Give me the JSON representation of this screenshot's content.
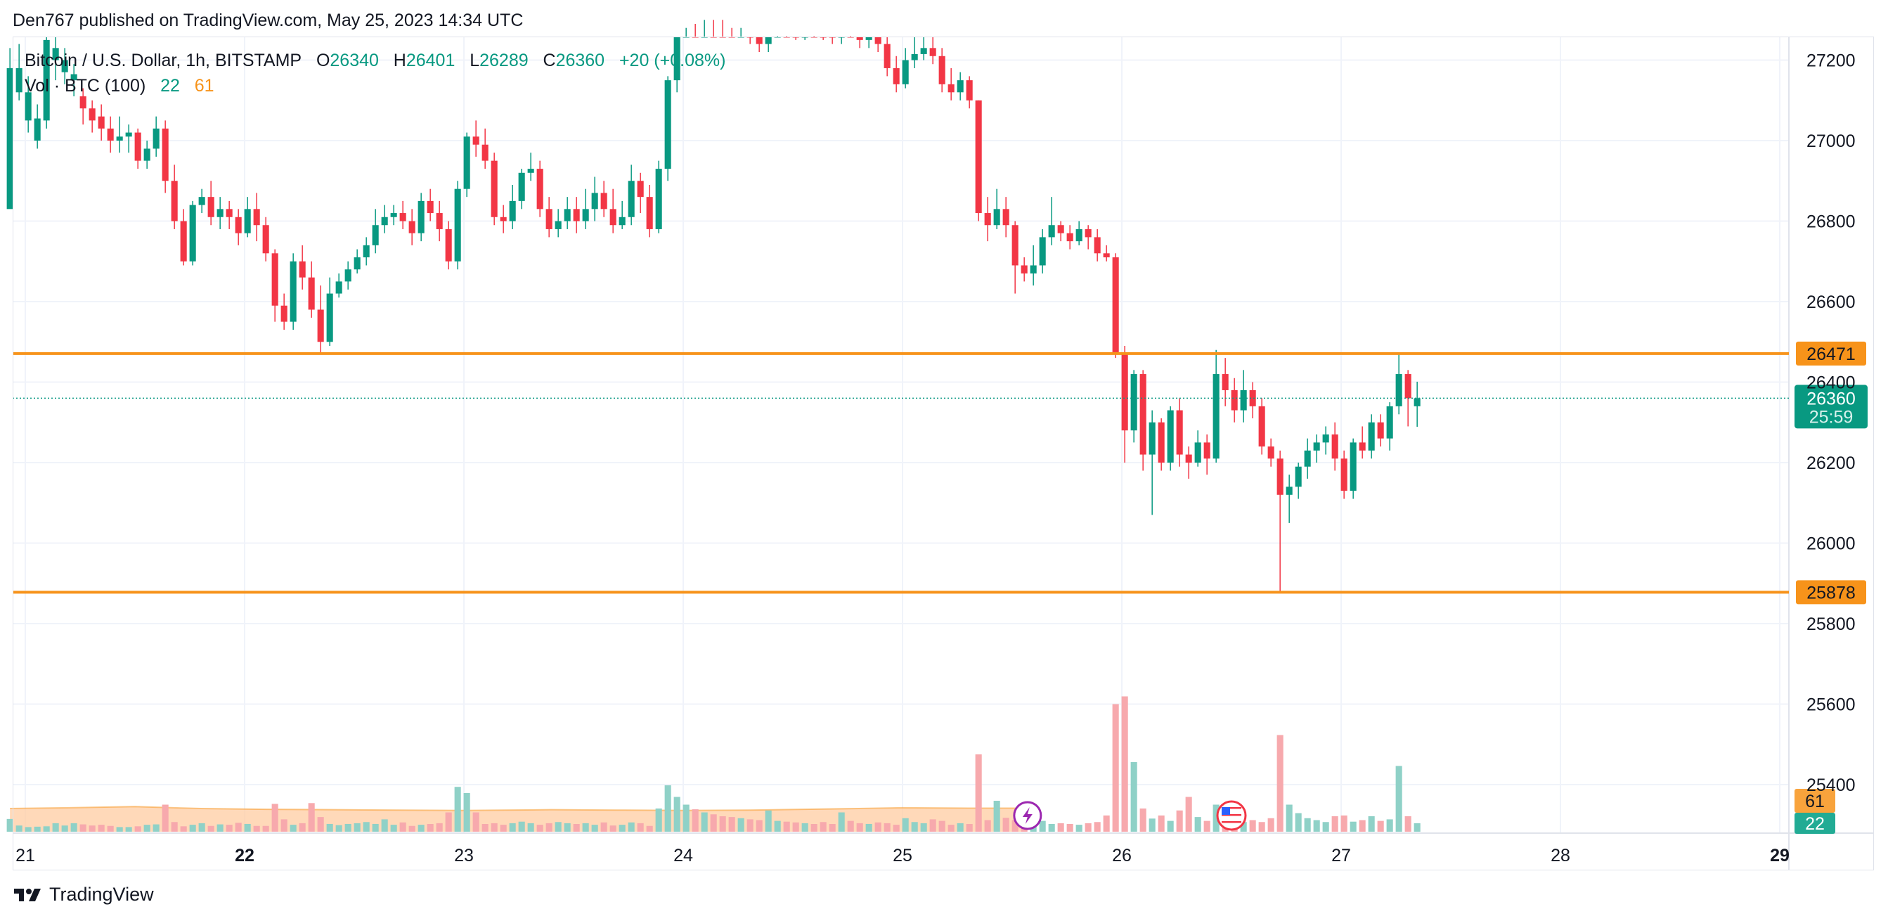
{
  "publisher": "Den767 published on TradingView.com, May 25, 2023 14:34 UTC",
  "brand": "TradingView",
  "legend": {
    "symbol": "Bitcoin / U.S. Dollar, 1h, BITSTAMP",
    "o_label": "O",
    "o_value": "26340",
    "h_label": "H",
    "h_value": "26401",
    "l_label": "L",
    "l_value": "26289",
    "c_label": "C",
    "c_value": "26360",
    "change": "+20 (+0.08%)",
    "vol_label": "Vol · BTC (100)",
    "vol_value_up": "22",
    "vol_value_ma": "61"
  },
  "colors": {
    "up": "#089981",
    "down": "#f23645",
    "level": "#f7931a",
    "grid": "#f0f3fa",
    "vol_up": "#8fd1c7",
    "vol_down": "#f7a9ad",
    "vol_ma_fill": "#ffcca1"
  },
  "icons": [
    "tradingview-logo-icon",
    "lightning-event-icon",
    "us-flag-event-icon"
  ],
  "chart_data": {
    "type": "candlestick",
    "title": "Bitcoin / U.S. Dollar, 1h, BITSTAMP",
    "x_range_days": [
      20.9,
      29.0
    ],
    "ylim": [
      25300,
      27250
    ],
    "y_ticks": [
      25400,
      25600,
      25800,
      26000,
      26200,
      26400,
      26600,
      26800,
      27000,
      27200
    ],
    "x_ticks": [
      "21",
      "22",
      "23",
      "24",
      "25",
      "26",
      "27",
      "28",
      "29"
    ],
    "levels": [
      26471,
      25878
    ],
    "last_price": {
      "value": "26360",
      "countdown": "25:59"
    },
    "volume_badges": {
      "ma": "61",
      "vol": "22"
    },
    "candles_start_day": 20.93,
    "candles_per_day": 24,
    "candles": [
      [
        26830,
        27180,
        27230,
        27110,
        33
      ],
      [
        27120,
        27180,
        27240,
        27100,
        16
      ],
      [
        27050,
        27120,
        27160,
        27020,
        12
      ],
      [
        27000,
        27055,
        27090,
        26980,
        13
      ],
      [
        27050,
        27250,
        27290,
        27030,
        14
      ],
      [
        27200,
        27230,
        27270,
        27150,
        22
      ],
      [
        27170,
        27200,
        27230,
        27140,
        16
      ],
      [
        27150,
        27165,
        27190,
        27110,
        22
      ],
      [
        27110,
        27080,
        27130,
        27040,
        19
      ],
      [
        27080,
        27050,
        27100,
        27020,
        16
      ],
      [
        27060,
        27030,
        27090,
        27000,
        18
      ],
      [
        27030,
        27000,
        27060,
        26970,
        15
      ],
      [
        27000,
        27010,
        27060,
        26970,
        12
      ],
      [
        27010,
        27020,
        27040,
        26970,
        12
      ],
      [
        27020,
        26950,
        27030,
        26930,
        14
      ],
      [
        26950,
        26980,
        27000,
        26930,
        18
      ],
      [
        26980,
        27030,
        27060,
        26960,
        19
      ],
      [
        27030,
        26900,
        27050,
        26870,
        70
      ],
      [
        26900,
        26800,
        26940,
        26780,
        25
      ],
      [
        26800,
        26700,
        26830,
        26690,
        14
      ],
      [
        26700,
        26840,
        26850,
        26690,
        18
      ],
      [
        26840,
        26860,
        26880,
        26820,
        22
      ],
      [
        26860,
        26810,
        26900,
        26790,
        15
      ],
      [
        26810,
        26830,
        26860,
        26780,
        19
      ],
      [
        26830,
        26810,
        26850,
        26780,
        18
      ],
      [
        26810,
        26770,
        26830,
        26740,
        23
      ],
      [
        26770,
        26830,
        26860,
        26760,
        20
      ],
      [
        26830,
        26790,
        26870,
        26750,
        15
      ],
      [
        26790,
        26720,
        26810,
        26700,
        15
      ],
      [
        26720,
        26590,
        26730,
        26550,
        72
      ],
      [
        26590,
        26550,
        26620,
        26530,
        32
      ],
      [
        26550,
        26700,
        26720,
        26530,
        18
      ],
      [
        26700,
        26660,
        26740,
        26630,
        22
      ],
      [
        26660,
        26580,
        26700,
        26560,
        74
      ],
      [
        26580,
        26500,
        26640,
        26470,
        38
      ],
      [
        26500,
        26620,
        26660,
        26490,
        20
      ],
      [
        26620,
        26650,
        26670,
        26610,
        17
      ],
      [
        26650,
        26680,
        26700,
        26630,
        20
      ],
      [
        26680,
        26710,
        26730,
        26670,
        22
      ],
      [
        26710,
        26740,
        26760,
        26690,
        25
      ],
      [
        26740,
        26790,
        26830,
        26720,
        20
      ],
      [
        26790,
        26810,
        26840,
        26770,
        32
      ],
      [
        26810,
        26820,
        26840,
        26790,
        18
      ],
      [
        26820,
        26800,
        26850,
        26780,
        24
      ],
      [
        26800,
        26770,
        26830,
        26740,
        15
      ],
      [
        26770,
        26850,
        26870,
        26750,
        18
      ],
      [
        26850,
        26820,
        26880,
        26800,
        20
      ],
      [
        26820,
        26780,
        26850,
        26750,
        22
      ],
      [
        26780,
        26700,
        26800,
        26680,
        50
      ],
      [
        26700,
        26880,
        26900,
        26680,
        116
      ],
      [
        26880,
        27010,
        27020,
        26860,
        100
      ],
      [
        27010,
        26990,
        27050,
        26960,
        50
      ],
      [
        26990,
        26950,
        27030,
        26930,
        20
      ],
      [
        26950,
        26810,
        26970,
        26790,
        22
      ],
      [
        26810,
        26800,
        26840,
        26770,
        18
      ],
      [
        26800,
        26850,
        26890,
        26780,
        22
      ],
      [
        26850,
        26920,
        26930,
        26830,
        26
      ],
      [
        26920,
        26930,
        26970,
        26900,
        22
      ],
      [
        26930,
        26830,
        26950,
        26810,
        18
      ],
      [
        26830,
        26780,
        26860,
        26760,
        22
      ],
      [
        26780,
        26800,
        26830,
        26760,
        25
      ],
      [
        26800,
        26830,
        26860,
        26780,
        22
      ],
      [
        26830,
        26800,
        26860,
        26770,
        20
      ],
      [
        26800,
        26830,
        26880,
        26780,
        22
      ],
      [
        26830,
        26870,
        26910,
        26800,
        18
      ],
      [
        26870,
        26830,
        26900,
        26810,
        24
      ],
      [
        26830,
        26790,
        26880,
        26770,
        16
      ],
      [
        26790,
        26810,
        26850,
        26780,
        18
      ],
      [
        26810,
        26900,
        26940,
        26790,
        24
      ],
      [
        26900,
        26860,
        26920,
        26820,
        22
      ],
      [
        26860,
        26780,
        26890,
        26760,
        15
      ],
      [
        26780,
        26930,
        26950,
        26770,
        60
      ],
      [
        26930,
        27150,
        27160,
        26900,
        120
      ],
      [
        27150,
        27300,
        27350,
        27120,
        90
      ],
      [
        27300,
        27350,
        27400,
        27280,
        70
      ],
      [
        27350,
        27320,
        27400,
        27290,
        58
      ],
      [
        27320,
        27340,
        27380,
        27300,
        50
      ],
      [
        27340,
        27330,
        27380,
        27300,
        45
      ],
      [
        27330,
        27320,
        27370,
        27300,
        40
      ],
      [
        27320,
        27300,
        27360,
        27280,
        38
      ],
      [
        27300,
        27310,
        27340,
        27280,
        35
      ],
      [
        27310,
        27270,
        27340,
        27240,
        32
      ],
      [
        27270,
        27240,
        27290,
        27220,
        30
      ],
      [
        27240,
        27280,
        27300,
        27220,
        55
      ],
      [
        27280,
        27300,
        27330,
        27260,
        28
      ],
      [
        27300,
        27290,
        27320,
        27260,
        26
      ],
      [
        27290,
        27270,
        27320,
        27250,
        24
      ],
      [
        27270,
        27290,
        27310,
        27250,
        22
      ],
      [
        27290,
        27280,
        27310,
        27260,
        20
      ],
      [
        27280,
        27270,
        27300,
        27250,
        25
      ],
      [
        27270,
        27260,
        27290,
        27240,
        20
      ],
      [
        27260,
        27300,
        27310,
        27240,
        50
      ],
      [
        27300,
        27280,
        27330,
        27260,
        28
      ],
      [
        27280,
        27250,
        27300,
        27230,
        22
      ],
      [
        27250,
        27270,
        27290,
        27230,
        20
      ],
      [
        27270,
        27240,
        27290,
        27220,
        24
      ],
      [
        27240,
        27180,
        27260,
        27160,
        22
      ],
      [
        27180,
        27140,
        27210,
        27120,
        18
      ],
      [
        27140,
        27200,
        27230,
        27130,
        35
      ],
      [
        27200,
        27215,
        27260,
        27180,
        25
      ],
      [
        27215,
        27230,
        27280,
        27200,
        22
      ],
      [
        27230,
        27210,
        27260,
        27190,
        32
      ],
      [
        27210,
        27140,
        27230,
        27120,
        28
      ],
      [
        27140,
        27120,
        27180,
        27100,
        18
      ],
      [
        27120,
        27150,
        27170,
        27100,
        22
      ],
      [
        27150,
        27100,
        27160,
        27080,
        20
      ],
      [
        27100,
        26820,
        27100,
        26800,
        200
      ],
      [
        26820,
        26790,
        26860,
        26750,
        30
      ],
      [
        26790,
        26830,
        26880,
        26780,
        80
      ],
      [
        26830,
        26790,
        26860,
        26760,
        36
      ],
      [
        26790,
        26690,
        26800,
        26620,
        30
      ],
      [
        26690,
        26670,
        26710,
        26650,
        50
      ],
      [
        26670,
        26690,
        26740,
        26640,
        42
      ],
      [
        26690,
        26760,
        26780,
        26670,
        28
      ],
      [
        26760,
        26790,
        26860,
        26740,
        20
      ],
      [
        26790,
        26770,
        26800,
        26750,
        22
      ],
      [
        26770,
        26750,
        26790,
        26730,
        20
      ],
      [
        26750,
        26780,
        26800,
        26740,
        18
      ],
      [
        26780,
        26760,
        26790,
        26730,
        22
      ],
      [
        26760,
        26720,
        26780,
        26700,
        25
      ],
      [
        26720,
        26710,
        26740,
        26700,
        42
      ],
      [
        26710,
        26470,
        26720,
        26460,
        330
      ],
      [
        26470,
        26280,
        26490,
        26200,
        350
      ],
      [
        26280,
        26420,
        26430,
        26250,
        180
      ],
      [
        26420,
        26220,
        26430,
        26180,
        60
      ],
      [
        26220,
        26300,
        26330,
        26070,
        34
      ],
      [
        26300,
        26200,
        26310,
        26180,
        42
      ],
      [
        26200,
        26330,
        26340,
        26180,
        28
      ],
      [
        26330,
        26220,
        26360,
        26190,
        55
      ],
      [
        26220,
        26200,
        26240,
        26160,
        90
      ],
      [
        26200,
        26250,
        26280,
        26190,
        38
      ],
      [
        26250,
        26210,
        26270,
        26170,
        28
      ],
      [
        26210,
        26420,
        26480,
        26200,
        70
      ],
      [
        26420,
        26380,
        26460,
        26340,
        40
      ],
      [
        26380,
        26330,
        26410,
        26300,
        28
      ],
      [
        26330,
        26380,
        26430,
        26300,
        25
      ],
      [
        26380,
        26340,
        26400,
        26310,
        30
      ],
      [
        26340,
        26240,
        26360,
        26220,
        25
      ],
      [
        26240,
        26210,
        26260,
        26190,
        35
      ],
      [
        26210,
        26120,
        26230,
        25878,
        250
      ],
      [
        26120,
        26140,
        26170,
        26050,
        70
      ],
      [
        26140,
        26190,
        26200,
        26110,
        48
      ],
      [
        26190,
        26230,
        26260,
        26160,
        35
      ],
      [
        26230,
        26250,
        26270,
        26200,
        30
      ],
      [
        26250,
        26270,
        26290,
        26220,
        25
      ],
      [
        26270,
        26210,
        26300,
        26180,
        40
      ],
      [
        26210,
        26130,
        26230,
        26110,
        42
      ],
      [
        26130,
        26250,
        26260,
        26110,
        26
      ],
      [
        26250,
        26230,
        26290,
        26210,
        30
      ],
      [
        26230,
        26300,
        26320,
        26210,
        40
      ],
      [
        26300,
        26260,
        26320,
        26240,
        28
      ],
      [
        26260,
        26340,
        26350,
        26230,
        32
      ],
      [
        26340,
        26420,
        26471,
        26320,
        170
      ],
      [
        26420,
        26360,
        26430,
        26290,
        40
      ],
      [
        26340,
        26360,
        26401,
        26289,
        22
      ]
    ],
    "volume_ma": [
      [
        20.93,
        60
      ],
      [
        21.2,
        62
      ],
      [
        21.5,
        65
      ],
      [
        21.8,
        60
      ],
      [
        22.1,
        58
      ],
      [
        22.4,
        57
      ],
      [
        22.7,
        56
      ],
      [
        23.0,
        55
      ],
      [
        23.4,
        57
      ],
      [
        23.7,
        56
      ],
      [
        24.0,
        55
      ],
      [
        24.3,
        56
      ],
      [
        24.55,
        58
      ],
      [
        24.8,
        60
      ],
      [
        25.0,
        62
      ],
      [
        25.3,
        61
      ],
      [
        25.55,
        61
      ]
    ],
    "events": [
      {
        "day": 25.57,
        "icon": "lightning-event-icon"
      },
      {
        "day": 26.5,
        "icon": "us-flag-event-icon"
      }
    ]
  }
}
